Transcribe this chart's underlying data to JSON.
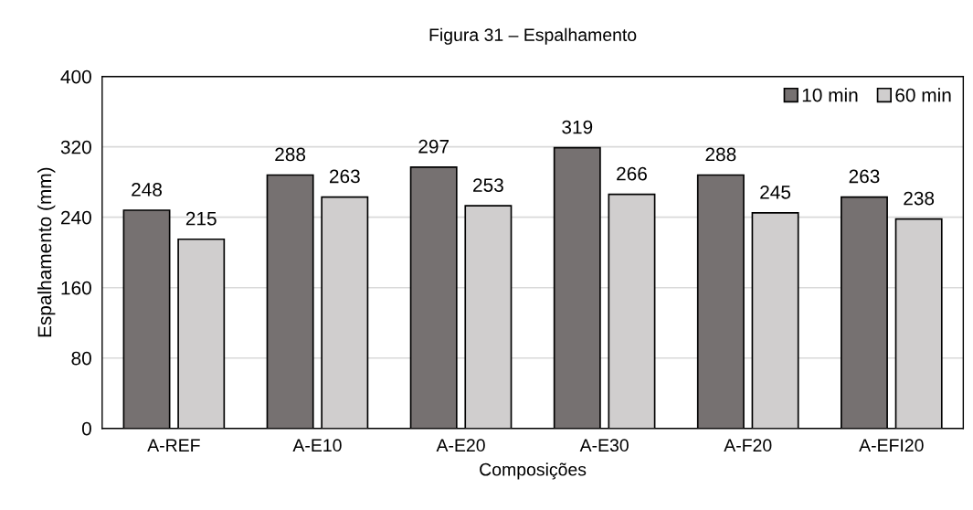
{
  "chart_data": {
    "type": "bar",
    "title": "Figura 31 – Espalhamento",
    "xlabel": "Composições",
    "ylabel": "Espalhamento (mm)",
    "categories": [
      "A-REF",
      "A-E10",
      "A-E20",
      "A-E30",
      "A-F20",
      "A-EFI20"
    ],
    "series": [
      {
        "name": "10 min",
        "color": "#767171",
        "values": [
          248,
          288,
          297,
          319,
          288,
          263
        ]
      },
      {
        "name": "60 min",
        "color": "#d0cece",
        "values": [
          215,
          263,
          253,
          266,
          245,
          238
        ]
      }
    ],
    "ylim": [
      0,
      400
    ],
    "yticks": [
      0,
      80,
      160,
      240,
      320,
      400
    ],
    "grid": "y",
    "legend": "top right",
    "data_labels": true
  }
}
